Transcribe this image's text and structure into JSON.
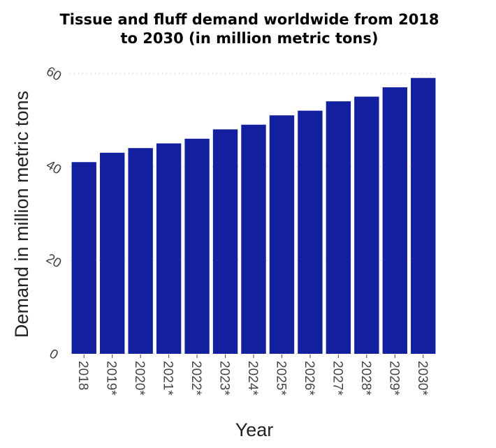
{
  "chart_data": {
    "type": "bar",
    "title": "Tissue and fluff demand worldwide from 2018 to 2030 (in million metric tons)",
    "title_lines": [
      "Tissue and fluff demand worldwide from 2018",
      "to 2030 (in million metric tons)"
    ],
    "xlabel": "Year",
    "ylabel": "Demand in million metric tons",
    "categories": [
      "2018",
      "2019*",
      "2020*",
      "2021*",
      "2022*",
      "2023*",
      "2024*",
      "2025*",
      "2026*",
      "2027*",
      "2028*",
      "2029*",
      "2030*"
    ],
    "values": [
      41,
      43,
      44,
      45,
      46,
      48,
      49,
      51,
      52,
      54,
      55,
      57,
      59
    ],
    "ylim": [
      0,
      60
    ],
    "yticks": [
      0,
      20,
      40,
      60
    ],
    "ytick_labels": [
      "0",
      "20",
      "40",
      "60"
    ],
    "grid": true,
    "bar_color": "#1220a0"
  }
}
